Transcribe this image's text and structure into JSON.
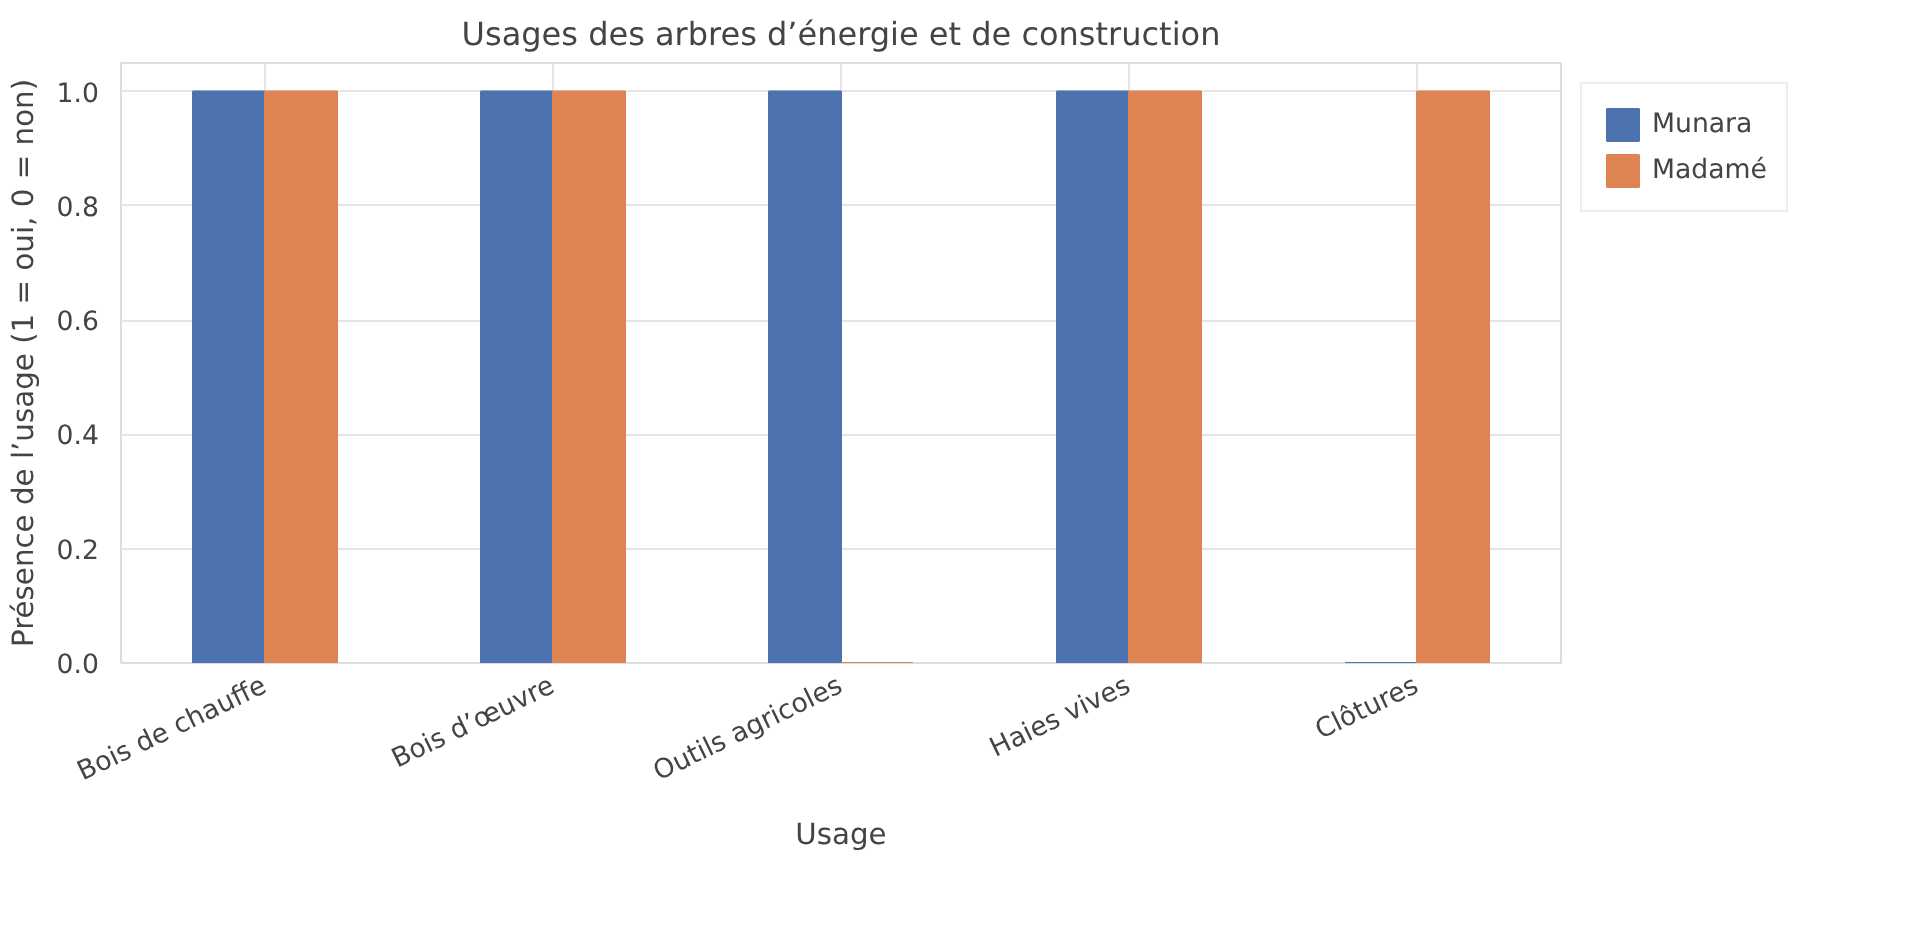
{
  "chart_data": {
    "type": "bar",
    "title": "Usages des arbres d’énergie et de construction",
    "xlabel": "Usage",
    "ylabel": "Présence de l’usage (1 = oui, 0 = non)",
    "categories": [
      "Bois de chauffe",
      "Bois d’œuvre",
      "Outils agricoles",
      "Haies vives",
      "Clôtures"
    ],
    "series": [
      {
        "name": "Munara",
        "color": "#4c72b0",
        "values": [
          1,
          1,
          1,
          1,
          0
        ]
      },
      {
        "name": "Madamé",
        "color": "#dd8452",
        "values": [
          1,
          1,
          0,
          1,
          1
        ]
      }
    ],
    "ylim": [
      0,
      1.05
    ],
    "yticks": [
      {
        "value": 0,
        "label": "0.0"
      },
      {
        "value": 0.2,
        "label": "0.2"
      },
      {
        "value": 0.4,
        "label": "0.4"
      },
      {
        "value": 0.6,
        "label": "0.6"
      },
      {
        "value": 0.8,
        "label": "0.8"
      },
      {
        "value": 1,
        "label": "1.0"
      }
    ],
    "grid": true,
    "legend": "right"
  }
}
